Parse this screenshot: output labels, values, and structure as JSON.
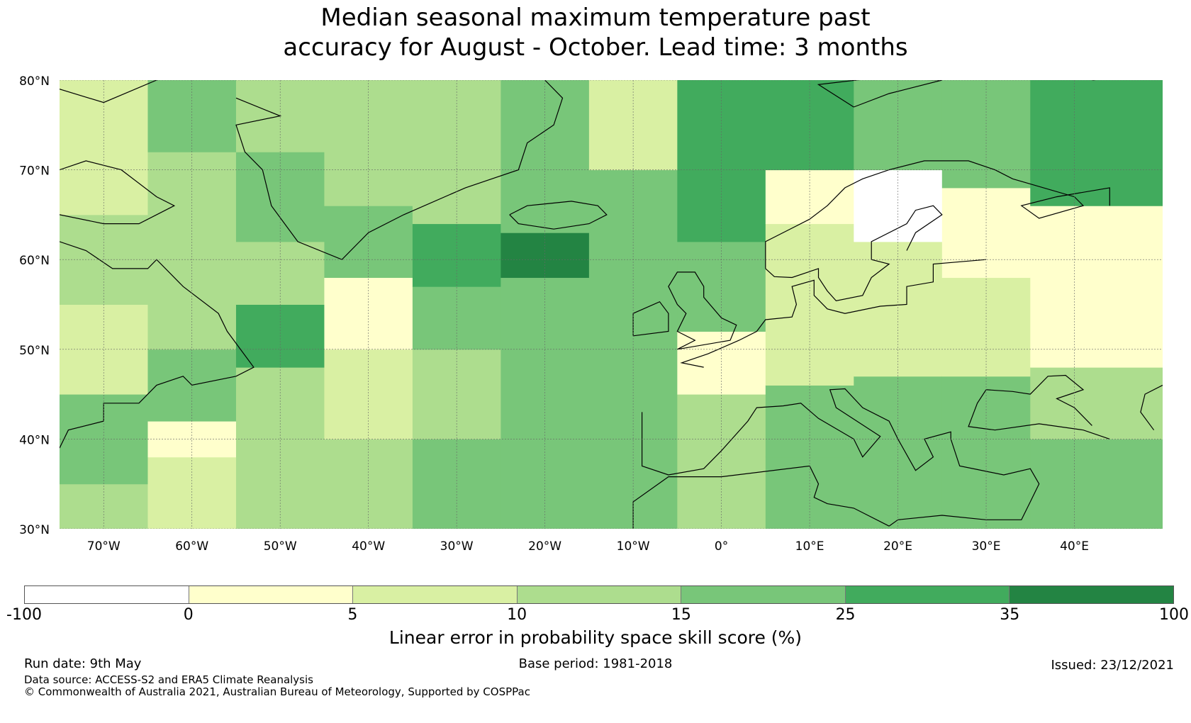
{
  "title": {
    "line1": "Median seasonal maximum temperature past",
    "line2": "accuracy for August - October. Lead time: 3 months"
  },
  "map": {
    "lat_labels": [
      "80°N",
      "70°N",
      "60°N",
      "50°N",
      "40°N",
      "30°N"
    ],
    "lon_labels": [
      "70°W",
      "60°W",
      "50°W",
      "40°W",
      "30°W",
      "20°W",
      "10°W",
      "0°",
      "10°E",
      "20°E",
      "30°E",
      "40°E"
    ],
    "lat_range": [
      30,
      80
    ],
    "lon_range": [
      -75,
      50
    ],
    "gridlines": true,
    "coastline_color": "#000000"
  },
  "legend": {
    "ticks": [
      "-100",
      "0",
      "5",
      "10",
      "15",
      "25",
      "35",
      "100"
    ],
    "colors": [
      "#ffffff",
      "#ffffcc",
      "#d9f0a3",
      "#addd8e",
      "#78c679",
      "#41ab5d",
      "#238443"
    ],
    "label": "Linear error in probability space skill score (%)"
  },
  "footer": {
    "run_date": "Run date: 9th May",
    "data_source": "Data source: ACCESS-S2 and ERA5 Climate Reanalysis",
    "copyright": "© Commonwealth of Australia 2021, Australian Bureau of Meteorology, Supported by COSPPac",
    "base_period": "Base period: 1981-2018",
    "issued": "Issued: 23/12/2021"
  },
  "chart_data": {
    "type": "heatmap",
    "title": "Median seasonal maximum temperature past accuracy for August - October. Lead time: 3 months",
    "xlabel": "",
    "ylabel": "",
    "colorbar_label": "Linear error in probability space skill score (%)",
    "bins": [
      -100,
      0,
      5,
      10,
      15,
      25,
      35,
      100
    ],
    "regions": [
      {
        "lon": [
          -75,
          -65
        ],
        "lat": [
          30,
          35
        ],
        "value": 12
      },
      {
        "lon": [
          -75,
          -65
        ],
        "lat": [
          35,
          45
        ],
        "value": 18
      },
      {
        "lon": [
          -75,
          -65
        ],
        "lat": [
          45,
          55
        ],
        "value": 8
      },
      {
        "lon": [
          -75,
          -65
        ],
        "lat": [
          55,
          65
        ],
        "value": 12
      },
      {
        "lon": [
          -75,
          -65
        ],
        "lat": [
          65,
          72
        ],
        "value": 6
      },
      {
        "lon": [
          -75,
          -65
        ],
        "lat": [
          72,
          80
        ],
        "value": 9
      },
      {
        "lon": [
          -65,
          -55
        ],
        "lat": [
          30,
          38
        ],
        "value": 9
      },
      {
        "lon": [
          -65,
          -55
        ],
        "lat": [
          38,
          42
        ],
        "value": 2
      },
      {
        "lon": [
          -65,
          -55
        ],
        "lat": [
          42,
          50
        ],
        "value": 24
      },
      {
        "lon": [
          -65,
          -55
        ],
        "lat": [
          50,
          62
        ],
        "value": 14
      },
      {
        "lon": [
          -65,
          -55
        ],
        "lat": [
          62,
          72
        ],
        "value": 13
      },
      {
        "lon": [
          -65,
          -55
        ],
        "lat": [
          72,
          80
        ],
        "value": 16
      },
      {
        "lon": [
          -55,
          -45
        ],
        "lat": [
          30,
          40
        ],
        "value": 14
      },
      {
        "lon": [
          -55,
          -45
        ],
        "lat": [
          40,
          48
        ],
        "value": 10
      },
      {
        "lon": [
          -55,
          -45
        ],
        "lat": [
          48,
          55
        ],
        "value": 27
      },
      {
        "lon": [
          -55,
          -45
        ],
        "lat": [
          55,
          62
        ],
        "value": 12
      },
      {
        "lon": [
          -55,
          -45
        ],
        "lat": [
          62,
          72
        ],
        "value": 22
      },
      {
        "lon": [
          -55,
          -45
        ],
        "lat": [
          72,
          80
        ],
        "value": 12
      },
      {
        "lon": [
          -45,
          -35
        ],
        "lat": [
          30,
          40
        ],
        "value": 13
      },
      {
        "lon": [
          -45,
          -35
        ],
        "lat": [
          40,
          50
        ],
        "value": 7
      },
      {
        "lon": [
          -45,
          -35
        ],
        "lat": [
          50,
          58
        ],
        "value": 1
      },
      {
        "lon": [
          -45,
          -35
        ],
        "lat": [
          58,
          66
        ],
        "value": 20
      },
      {
        "lon": [
          -45,
          -35
        ],
        "lat": [
          66,
          80
        ],
        "value": 11
      },
      {
        "lon": [
          -35,
          -25
        ],
        "lat": [
          30,
          40
        ],
        "value": 16
      },
      {
        "lon": [
          -35,
          -25
        ],
        "lat": [
          40,
          50
        ],
        "value": 14
      },
      {
        "lon": [
          -35,
          -25
        ],
        "lat": [
          50,
          57
        ],
        "value": 18
      },
      {
        "lon": [
          -35,
          -25
        ],
        "lat": [
          57,
          64
        ],
        "value": 32
      },
      {
        "lon": [
          -35,
          -25
        ],
        "lat": [
          64,
          80
        ],
        "value": 13
      },
      {
        "lon": [
          -25,
          -15
        ],
        "lat": [
          30,
          40
        ],
        "value": 17
      },
      {
        "lon": [
          -25,
          -15
        ],
        "lat": [
          40,
          50
        ],
        "value": 15
      },
      {
        "lon": [
          -25,
          -15
        ],
        "lat": [
          50,
          58
        ],
        "value": 18
      },
      {
        "lon": [
          -25,
          -15
        ],
        "lat": [
          58,
          63
        ],
        "value": 37
      },
      {
        "lon": [
          -25,
          -15
        ],
        "lat": [
          63,
          72
        ],
        "value": 16
      },
      {
        "lon": [
          -25,
          -15
        ],
        "lat": [
          72,
          80
        ],
        "value": 19
      },
      {
        "lon": [
          -15,
          -5
        ],
        "lat": [
          30,
          40
        ],
        "value": 17
      },
      {
        "lon": [
          -15,
          -5
        ],
        "lat": [
          40,
          50
        ],
        "value": 16
      },
      {
        "lon": [
          -15,
          -5
        ],
        "lat": [
          50,
          60
        ],
        "value": 20
      },
      {
        "lon": [
          -15,
          -5
        ],
        "lat": [
          60,
          70
        ],
        "value": 16
      },
      {
        "lon": [
          -15,
          -5
        ],
        "lat": [
          70,
          80
        ],
        "value": 5
      },
      {
        "lon": [
          -5,
          5
        ],
        "lat": [
          30,
          45
        ],
        "value": 12
      },
      {
        "lon": [
          -5,
          5
        ],
        "lat": [
          45,
          52
        ],
        "value": 4
      },
      {
        "lon": [
          -5,
          5
        ],
        "lat": [
          52,
          62
        ],
        "value": 22
      },
      {
        "lon": [
          -5,
          5
        ],
        "lat": [
          62,
          70
        ],
        "value": 26
      },
      {
        "lon": [
          -5,
          5
        ],
        "lat": [
          70,
          80
        ],
        "value": 30
      },
      {
        "lon": [
          5,
          15
        ],
        "lat": [
          30,
          38
        ],
        "value": 15
      },
      {
        "lon": [
          5,
          15
        ],
        "lat": [
          38,
          46
        ],
        "value": 18
      },
      {
        "lon": [
          5,
          15
        ],
        "lat": [
          46,
          56
        ],
        "value": 6
      },
      {
        "lon": [
          5,
          15
        ],
        "lat": [
          56,
          64
        ],
        "value": 8
      },
      {
        "lon": [
          5,
          15
        ],
        "lat": [
          64,
          70
        ],
        "value": 3
      },
      {
        "lon": [
          5,
          15
        ],
        "lat": [
          70,
          80
        ],
        "value": 30
      },
      {
        "lon": [
          15,
          25
        ],
        "lat": [
          30,
          40
        ],
        "value": 22
      },
      {
        "lon": [
          15,
          25
        ],
        "lat": [
          40,
          47
        ],
        "value": 18
      },
      {
        "lon": [
          15,
          25
        ],
        "lat": [
          47,
          56
        ],
        "value": 6
      },
      {
        "lon": [
          15,
          25
        ],
        "lat": [
          56,
          62
        ],
        "value": 5
      },
      {
        "lon": [
          15,
          25
        ],
        "lat": [
          62,
          70
        ],
        "value": -20
      },
      {
        "lon": [
          15,
          25
        ],
        "lat": [
          70,
          80
        ],
        "value": 20
      },
      {
        "lon": [
          25,
          35
        ],
        "lat": [
          30,
          40
        ],
        "value": 24
      },
      {
        "lon": [
          25,
          35
        ],
        "lat": [
          40,
          47
        ],
        "value": 18
      },
      {
        "lon": [
          25,
          35
        ],
        "lat": [
          47,
          58
        ],
        "value": 6
      },
      {
        "lon": [
          25,
          35
        ],
        "lat": [
          58,
          68
        ],
        "value": 3
      },
      {
        "lon": [
          25,
          35
        ],
        "lat": [
          68,
          80
        ],
        "value": 24
      },
      {
        "lon": [
          35,
          50
        ],
        "lat": [
          30,
          40
        ],
        "value": 15
      },
      {
        "lon": [
          35,
          50
        ],
        "lat": [
          40,
          48
        ],
        "value": 14
      },
      {
        "lon": [
          35,
          50
        ],
        "lat": [
          48,
          58
        ],
        "value": 4
      },
      {
        "lon": [
          35,
          50
        ],
        "lat": [
          58,
          66
        ],
        "value": 3
      },
      {
        "lon": [
          35,
          50
        ],
        "lat": [
          66,
          80
        ],
        "value": 33
      }
    ]
  }
}
